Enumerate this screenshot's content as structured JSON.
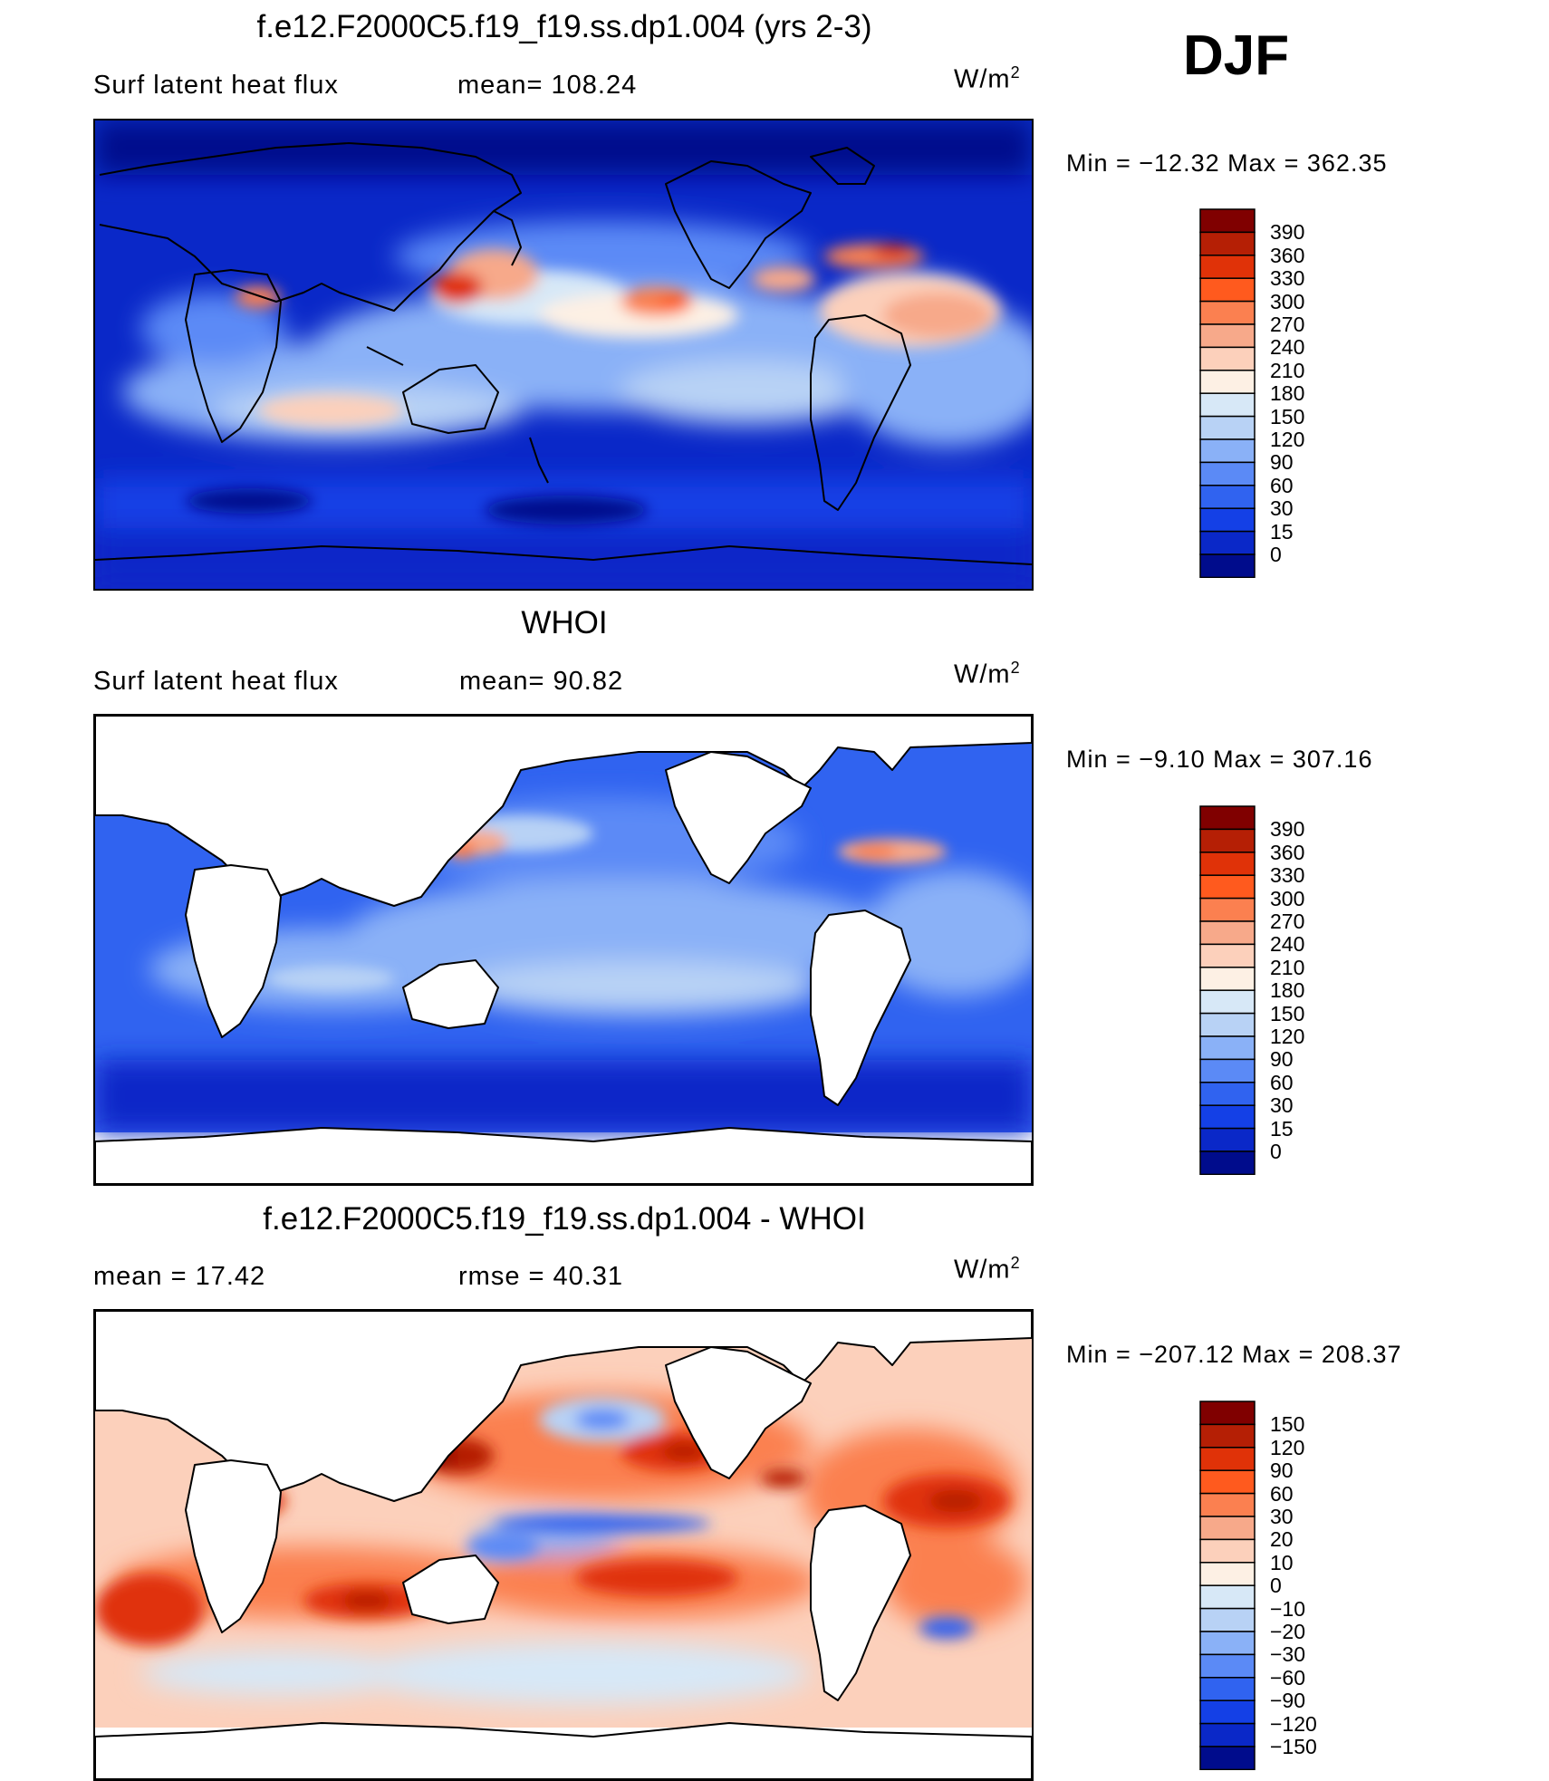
{
  "season": "DJF",
  "units": {
    "base": "W/m",
    "exp": "2"
  },
  "panels": [
    {
      "id": "model",
      "title": "f.e12.F2000C5.f19_f19.ss.dp1.004 (yrs 2-3)",
      "left_label": "Surf latent heat flux",
      "right_label": "mean=  108.24",
      "minmax": "Min  =  −12.32  Max  =  362.35",
      "colorbar_labels": [
        "390",
        "360",
        "330",
        "300",
        "270",
        "240",
        "210",
        "180",
        "150",
        "120",
        "90",
        "60",
        "30",
        "15",
        "0"
      ]
    },
    {
      "id": "obs",
      "title": "WHOI",
      "left_label": "Surf latent heat flux",
      "right_label": "mean=   90.82",
      "minmax": "Min  =   −9.10  Max  =  307.16",
      "colorbar_labels": [
        "390",
        "360",
        "330",
        "300",
        "270",
        "240",
        "210",
        "180",
        "150",
        "120",
        "90",
        "60",
        "30",
        "15",
        "0"
      ]
    },
    {
      "id": "diff",
      "title": "f.e12.F2000C5.f19_f19.ss.dp1.004 - WHOI",
      "left_label": "mean  =    17.42",
      "right_label": "rmse  =    40.31",
      "minmax": "Min  =  −207.12  Max  =  208.37",
      "colorbar_labels": [
        "150",
        "120",
        "90",
        "60",
        "30",
        "20",
        "10",
        "0",
        "−10",
        "−20",
        "−30",
        "−60",
        "−90",
        "−120",
        "−150"
      ]
    }
  ],
  "colors": {
    "abs_scale": [
      "#800000",
      "#b51f05",
      "#e03208",
      "#ff5a1e",
      "#fb8050",
      "#f7a98a",
      "#fcd0bb",
      "#fdf0e4",
      "#d7e8f7",
      "#b8d2f5",
      "#8ab1f7",
      "#5b8af6",
      "#3063f0",
      "#1440e6",
      "#0a28c8",
      "#000c8c"
    ],
    "diff_scale": [
      "#800000",
      "#b51f05",
      "#e03208",
      "#ff5a1e",
      "#fb8050",
      "#f7a98a",
      "#fcd0bb",
      "#fdf0e4",
      "#d7e8f7",
      "#b8d2f5",
      "#8ab1f7",
      "#5b8af6",
      "#3063f0",
      "#1440e6",
      "#0a28c8",
      "#000c8c"
    ]
  },
  "chart_data": {
    "type": "heatmap",
    "variable": "Surf latent heat flux",
    "maps": [
      {
        "panel": "model",
        "mean": 108.24,
        "min": -12.32,
        "max": 362.35,
        "levels": [
          0,
          15,
          30,
          60,
          90,
          120,
          150,
          180,
          210,
          240,
          270,
          300,
          330,
          360,
          390
        ]
      },
      {
        "panel": "obs",
        "mean": 90.82,
        "min": -9.1,
        "max": 307.16,
        "levels": [
          0,
          15,
          30,
          60,
          90,
          120,
          150,
          180,
          210,
          240,
          270,
          300,
          330,
          360,
          390
        ]
      },
      {
        "panel": "diff",
        "mean": 17.42,
        "rmse": 40.31,
        "min": -207.12,
        "max": 208.37,
        "levels": [
          -150,
          -120,
          -90,
          -60,
          -30,
          -20,
          -10,
          0,
          10,
          20,
          30,
          60,
          90,
          120,
          150
        ]
      }
    ]
  }
}
